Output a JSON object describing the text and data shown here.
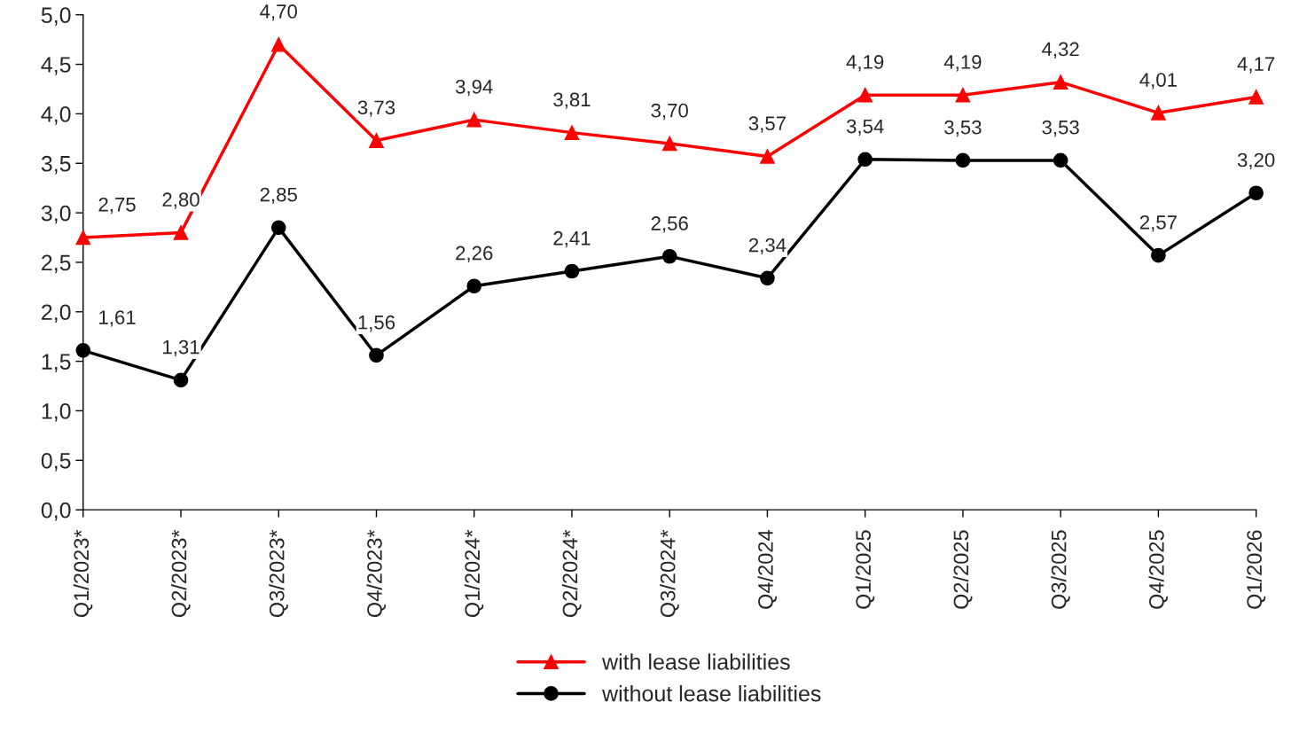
{
  "chart_data": {
    "type": "line",
    "categories": [
      "Q1/2023*",
      "Q2/2023*",
      "Q3/2023*",
      "Q4/2023*",
      "Q1/2024*",
      "Q2/2024*",
      "Q3/2024*",
      "Q4/2024",
      "Q1/2025",
      "Q2/2025",
      "Q3/2025",
      "Q4/2025",
      "Q1/2026"
    ],
    "series": [
      {
        "name": "with lease liabilities",
        "color": "#ff0000",
        "marker": "triangle",
        "values": [
          2.75,
          2.8,
          4.7,
          3.73,
          3.94,
          3.81,
          3.7,
          3.57,
          4.19,
          4.19,
          4.32,
          4.01,
          4.17
        ],
        "value_labels": [
          "2,75",
          "2,80",
          "4,70",
          "3,73",
          "3,94",
          "3,81",
          "3,70",
          "3,57",
          "4,19",
          "4,19",
          "4,32",
          "4,01",
          "4,17"
        ]
      },
      {
        "name": "without lease liabilities",
        "color": "#000000",
        "marker": "circle",
        "values": [
          1.61,
          1.31,
          2.85,
          1.56,
          2.26,
          2.41,
          2.56,
          2.34,
          3.54,
          3.53,
          3.53,
          2.57,
          3.2
        ],
        "value_labels": [
          "1,61",
          "1,31",
          "2,85",
          "1,56",
          "2,26",
          "2,41",
          "2,56",
          "2,34",
          "3,54",
          "3,53",
          "3,53",
          "2,57",
          "3,20"
        ]
      }
    ],
    "ylim": [
      0,
      5
    ],
    "yticks": [
      {
        "value": 0,
        "label": "0,0"
      },
      {
        "value": 0.5,
        "label": "0,5"
      },
      {
        "value": 1,
        "label": "1,0"
      },
      {
        "value": 1.5,
        "label": "1,5"
      },
      {
        "value": 2,
        "label": "2,0"
      },
      {
        "value": 2.5,
        "label": "2,5"
      },
      {
        "value": 3,
        "label": "3,0"
      },
      {
        "value": 3.5,
        "label": "3,5"
      },
      {
        "value": 4,
        "label": "4,0"
      },
      {
        "value": 4.5,
        "label": "4,5"
      },
      {
        "value": 5,
        "label": "5,0"
      }
    ],
    "grid": false,
    "legend": "bottom",
    "line_style": "solid"
  }
}
